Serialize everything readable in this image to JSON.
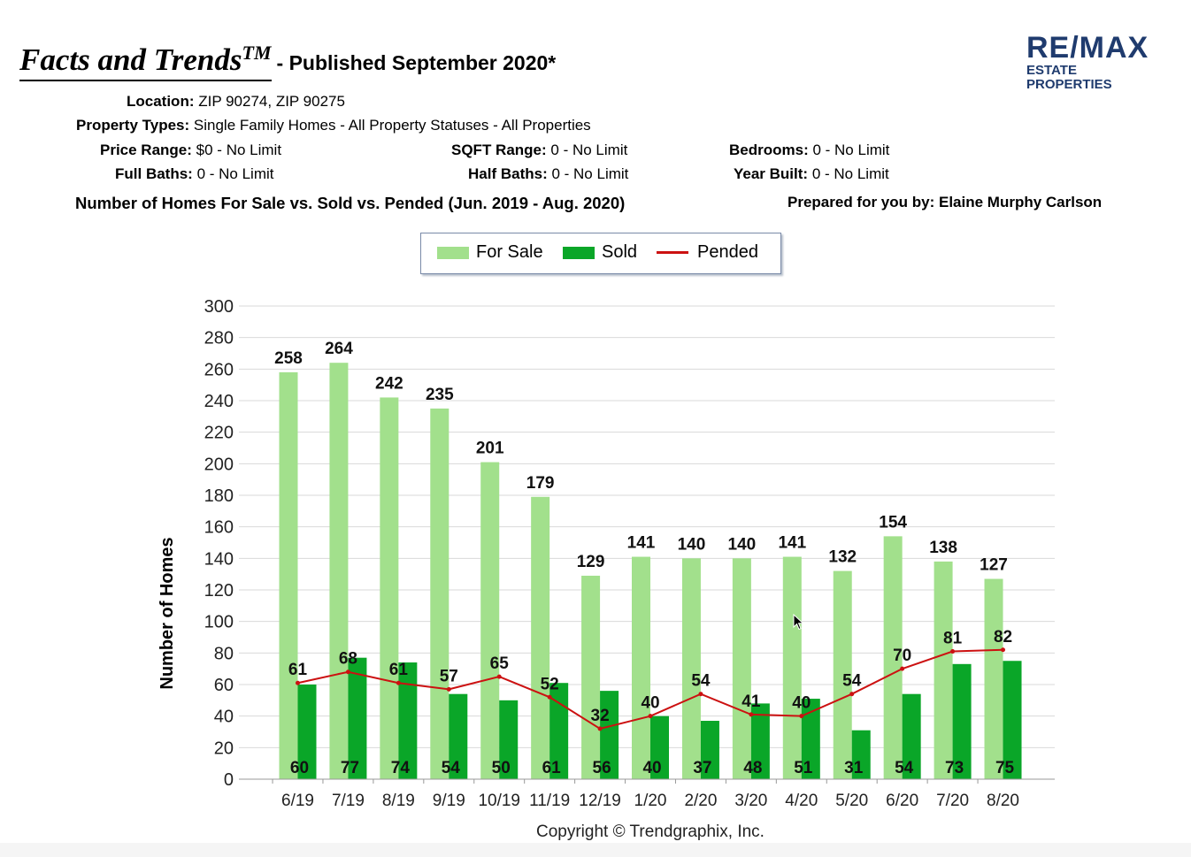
{
  "header": {
    "brand_title": "Facts and Trends",
    "trademark": "TM",
    "published": "- Published September 2020*"
  },
  "logo": {
    "main": "RE/MAX",
    "sub": "ESTATE PROPERTIES"
  },
  "criteria": {
    "location_label": "Location:",
    "location_value": "ZIP 90274, ZIP 90275",
    "property_types_label": "Property Types:",
    "property_types_value": "Single Family Homes - All Property Statuses - All Properties",
    "price_range_label": "Price Range:",
    "price_range_value": "$0 - No Limit",
    "sqft_range_label": "SQFT Range:",
    "sqft_range_value": "0 - No Limit",
    "bedrooms_label": "Bedrooms:",
    "bedrooms_value": "0 - No Limit",
    "full_baths_label": "Full Baths:",
    "full_baths_value": "0 - No Limit",
    "half_baths_label": "Half Baths:",
    "half_baths_value": "0 - No Limit",
    "year_built_label": "Year Built:",
    "year_built_value": "0 - No Limit"
  },
  "chart_heading": "Number of Homes For Sale vs. Sold vs. Pended (Jun. 2019 - Aug. 2020)",
  "prepared_by": "Prepared for you by: Elaine Murphy Carlson",
  "copyright": "Copyright © Trendgraphix, Inc.",
  "colors": {
    "for_sale": "#a2e08c",
    "sold": "#0aa628",
    "pended": "#cc1111",
    "grid": "#d9d9d9",
    "logo": "#1f3b6e"
  },
  "chart_data": {
    "type": "bar",
    "title": "Number of Homes For Sale vs. Sold vs. Pended (Jun. 2019 - Aug. 2020)",
    "xlabel": "",
    "ylabel": "Number of Homes",
    "ylim": [
      0,
      300
    ],
    "ytick_step": 20,
    "grid": true,
    "legend_position": "top-center",
    "categories": [
      "6/19",
      "7/19",
      "8/19",
      "9/19",
      "10/19",
      "11/19",
      "12/19",
      "1/20",
      "2/20",
      "3/20",
      "4/20",
      "5/20",
      "6/20",
      "7/20",
      "8/20"
    ],
    "series": [
      {
        "name": "For Sale",
        "type": "bar",
        "values": [
          258,
          264,
          242,
          235,
          201,
          179,
          129,
          141,
          140,
          140,
          141,
          132,
          154,
          138,
          127
        ]
      },
      {
        "name": "Sold",
        "type": "bar",
        "values": [
          60,
          77,
          74,
          54,
          50,
          61,
          56,
          40,
          37,
          48,
          51,
          31,
          54,
          73,
          75
        ]
      },
      {
        "name": "Pended",
        "type": "line",
        "values": [
          61,
          68,
          61,
          57,
          65,
          52,
          32,
          40,
          54,
          41,
          40,
          54,
          70,
          81,
          82
        ]
      }
    ]
  }
}
